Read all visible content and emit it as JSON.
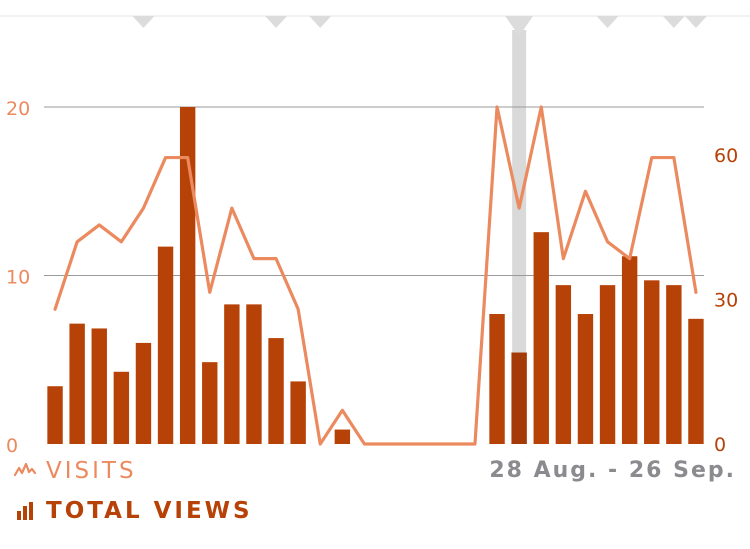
{
  "colors": {
    "views_bar": "#b74207",
    "views_bar_selected": "#a33a08",
    "visits_line": "#ec8a5f",
    "grid": "#9a9a9a",
    "left_axis_text": "#ec8a5f",
    "right_axis_text": "#b74207",
    "highlight_band": "#d9d9d9",
    "marker": "#dcdcdc"
  },
  "icons": {
    "visits": "line-graph-icon",
    "views": "bar-graph-icon"
  },
  "legend": {
    "visits_label": "VISITS",
    "views_label": "TOTAL VIEWS"
  },
  "date_range": "28 Aug. - 26 Sep.",
  "chart_data": {
    "type": "bar",
    "days": 30,
    "selected_index": 21,
    "marker_days": [
      4,
      10,
      12,
      21,
      25,
      28,
      29
    ],
    "left_axis": {
      "ticks": [
        0,
        10,
        20
      ],
      "range": [
        0,
        20
      ]
    },
    "right_axis": {
      "ticks": [
        0,
        30,
        60
      ],
      "range": [
        0,
        70
      ]
    },
    "series": [
      {
        "name": "TOTAL VIEWS",
        "kind": "bar",
        "values": [
          12,
          25,
          24,
          15,
          21,
          41,
          70,
          17,
          29,
          29,
          22,
          13,
          0,
          3,
          0,
          0,
          0,
          0,
          0,
          0,
          27,
          19,
          44,
          33,
          27,
          33,
          39,
          34,
          33,
          26
        ]
      },
      {
        "name": "VISITS",
        "kind": "line",
        "values": [
          8,
          12,
          13,
          12,
          14,
          17,
          17,
          9,
          14,
          11,
          11,
          8,
          0,
          2,
          0,
          0,
          0,
          0,
          0,
          0,
          20,
          14,
          20,
          11,
          15,
          12,
          11,
          17,
          17,
          9
        ]
      }
    ]
  }
}
